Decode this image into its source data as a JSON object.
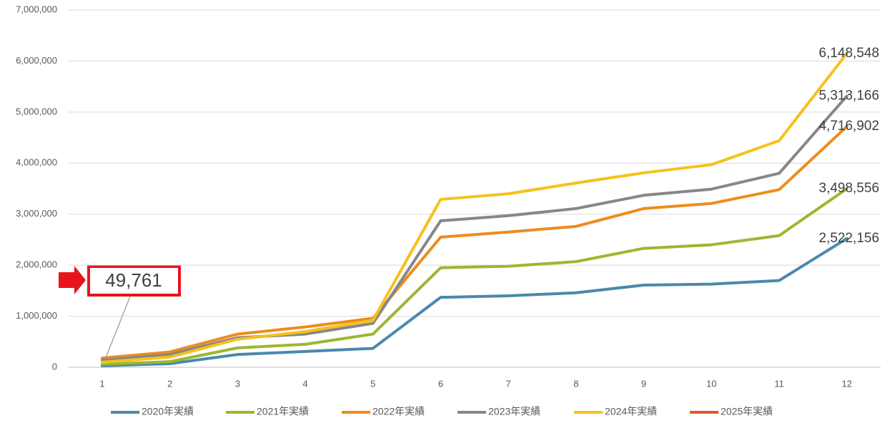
{
  "chart_data": {
    "type": "line",
    "categories": [
      "1",
      "2",
      "3",
      "4",
      "5",
      "6",
      "7",
      "8",
      "9",
      "10",
      "11",
      "12"
    ],
    "ylim": [
      0,
      7000000
    ],
    "yticks": [
      0,
      {
        "value": 1000000,
        "label": "1,000,000"
      },
      {
        "value": 2000000,
        "label": "2,000,000"
      },
      {
        "value": 3000000,
        "label": "3,000,000"
      },
      {
        "value": 4000000,
        "label": "4,000,000"
      },
      {
        "value": 5000000,
        "label": "5,000,000"
      },
      {
        "value": 6000000,
        "label": "6,000,000"
      },
      {
        "value": 7000000,
        "label": "7,000,000"
      }
    ],
    "grid": true,
    "legend": "bottom",
    "series": [
      {
        "name": "2020年実績",
        "color": "#4a89ac",
        "values": [
          30000,
          70000,
          250000,
          310000,
          370000,
          1370000,
          1400000,
          1460000,
          1610000,
          1630000,
          1700000,
          2522156
        ],
        "value_labels": [
          null,
          null,
          null,
          null,
          null,
          null,
          null,
          null,
          null,
          null,
          null,
          "2,522,156"
        ]
      },
      {
        "name": "2021年実績",
        "color": "#9ab832",
        "values": [
          60000,
          110000,
          380000,
          450000,
          650000,
          1950000,
          1980000,
          2070000,
          2330000,
          2400000,
          2580000,
          3498556
        ],
        "value_labels": [
          null,
          null,
          null,
          null,
          null,
          null,
          null,
          null,
          null,
          null,
          null,
          "3,498,556"
        ]
      },
      {
        "name": "2022年実績",
        "color": "#ee8c1c",
        "values": [
          180000,
          300000,
          650000,
          790000,
          960000,
          2550000,
          2650000,
          2760000,
          3110000,
          3210000,
          3480000,
          4716902
        ],
        "value_labels": [
          null,
          null,
          null,
          null,
          null,
          null,
          null,
          null,
          null,
          null,
          null,
          "4,716,902"
        ]
      },
      {
        "name": "2023年実績",
        "color": "#878787",
        "values": [
          140000,
          250000,
          580000,
          650000,
          860000,
          2870000,
          2970000,
          3110000,
          3370000,
          3490000,
          3800000,
          5313166
        ],
        "value_labels": [
          null,
          null,
          null,
          null,
          null,
          null,
          null,
          null,
          null,
          null,
          null,
          "5,313,166"
        ]
      },
      {
        "name": "2024年実績",
        "color": "#f5c21b",
        "values": [
          100000,
          200000,
          550000,
          700000,
          920000,
          3290000,
          3400000,
          3610000,
          3810000,
          3970000,
          4440000,
          6148548
        ],
        "value_labels": [
          null,
          null,
          null,
          null,
          null,
          null,
          null,
          null,
          null,
          null,
          null,
          "6,148,548"
        ]
      },
      {
        "name": "2025年実績",
        "color": "#e0582a",
        "values": [
          49761,
          null,
          null,
          null,
          null,
          null,
          null,
          null,
          null,
          null,
          null,
          null
        ],
        "value_labels": [
          "49,761",
          null,
          null,
          null,
          null,
          null,
          null,
          null,
          null,
          null,
          null,
          null
        ]
      }
    ]
  }
}
